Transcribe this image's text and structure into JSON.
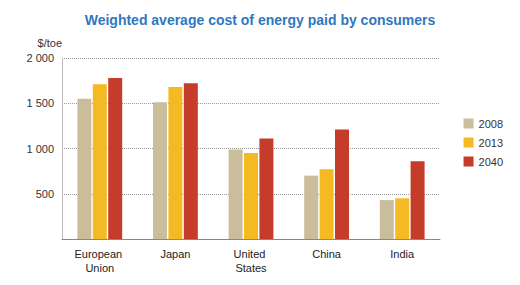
{
  "chart_data": {
    "type": "bar",
    "title": "Weighted average cost of energy paid by consumers",
    "y_label": "$/toe",
    "categories": [
      "European Union",
      "Japan",
      "United States",
      "China",
      "India"
    ],
    "series": [
      {
        "name": "2008",
        "color": "#c9bd9c",
        "values": [
          1550,
          1510,
          990,
          700,
          430
        ]
      },
      {
        "name": "2013",
        "color": "#f5b923",
        "values": [
          1710,
          1680,
          950,
          770,
          450
        ]
      },
      {
        "name": "2040",
        "color": "#c63c2a",
        "values": [
          1780,
          1720,
          1110,
          1210,
          860
        ]
      }
    ],
    "ylim": [
      0,
      2000
    ],
    "yticks": [
      500,
      {
        "value": 1000,
        "label": "1 000"
      },
      {
        "value": 1500,
        "label": "1 500"
      },
      {
        "value": 2000,
        "label": "2 000"
      }
    ],
    "grid": true,
    "legend": "right"
  }
}
